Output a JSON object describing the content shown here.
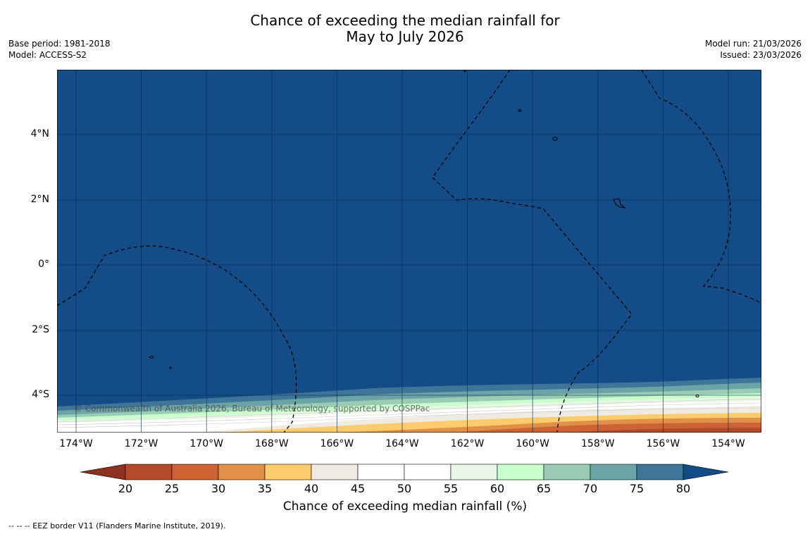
{
  "title": {
    "line1": "Chance of exceeding the median rainfall for",
    "line2": "May to July 2026"
  },
  "meta_left": {
    "base_period": "Base period: 1981-2018",
    "model": "Model: ACCESS-S2"
  },
  "meta_right": {
    "model_run": "Model run: 21/03/2026",
    "issued": "Issued: 23/03/2026"
  },
  "lat_labels": [
    "4°N",
    "2°N",
    "0°",
    "2°S",
    "4°S"
  ],
  "lon_labels": [
    "174°W",
    "172°W",
    "170°W",
    "168°W",
    "166°W",
    "164°W",
    "162°W",
    "160°W",
    "158°W",
    "156°W",
    "154°W"
  ],
  "copyright": "© Commonwealth of Australia 2026, Bureau of Meteorology, supported by COSPPac",
  "colorbar": {
    "ticks": [
      "20",
      "25",
      "30",
      "35",
      "40",
      "45",
      "50",
      "55",
      "60",
      "65",
      "70",
      "75",
      "80"
    ],
    "colors": [
      "#b34a2a",
      "#cd6234",
      "#e09048",
      "#fccc6c",
      "#efebe2",
      "#ffffff",
      "#ffffff",
      "#eaf7e6",
      "#c8ffcc",
      "#9acbb4",
      "#6ca3a6",
      "#3f7598"
    ],
    "under_color": "#8e3120",
    "over_color": "#124c87",
    "label": "Chance of exceeding median rainfall (%)"
  },
  "ocean_color": "#134c87",
  "footnote": "--  --  -- EEZ border V11 (Flanders Marine Institute, 2019)."
}
